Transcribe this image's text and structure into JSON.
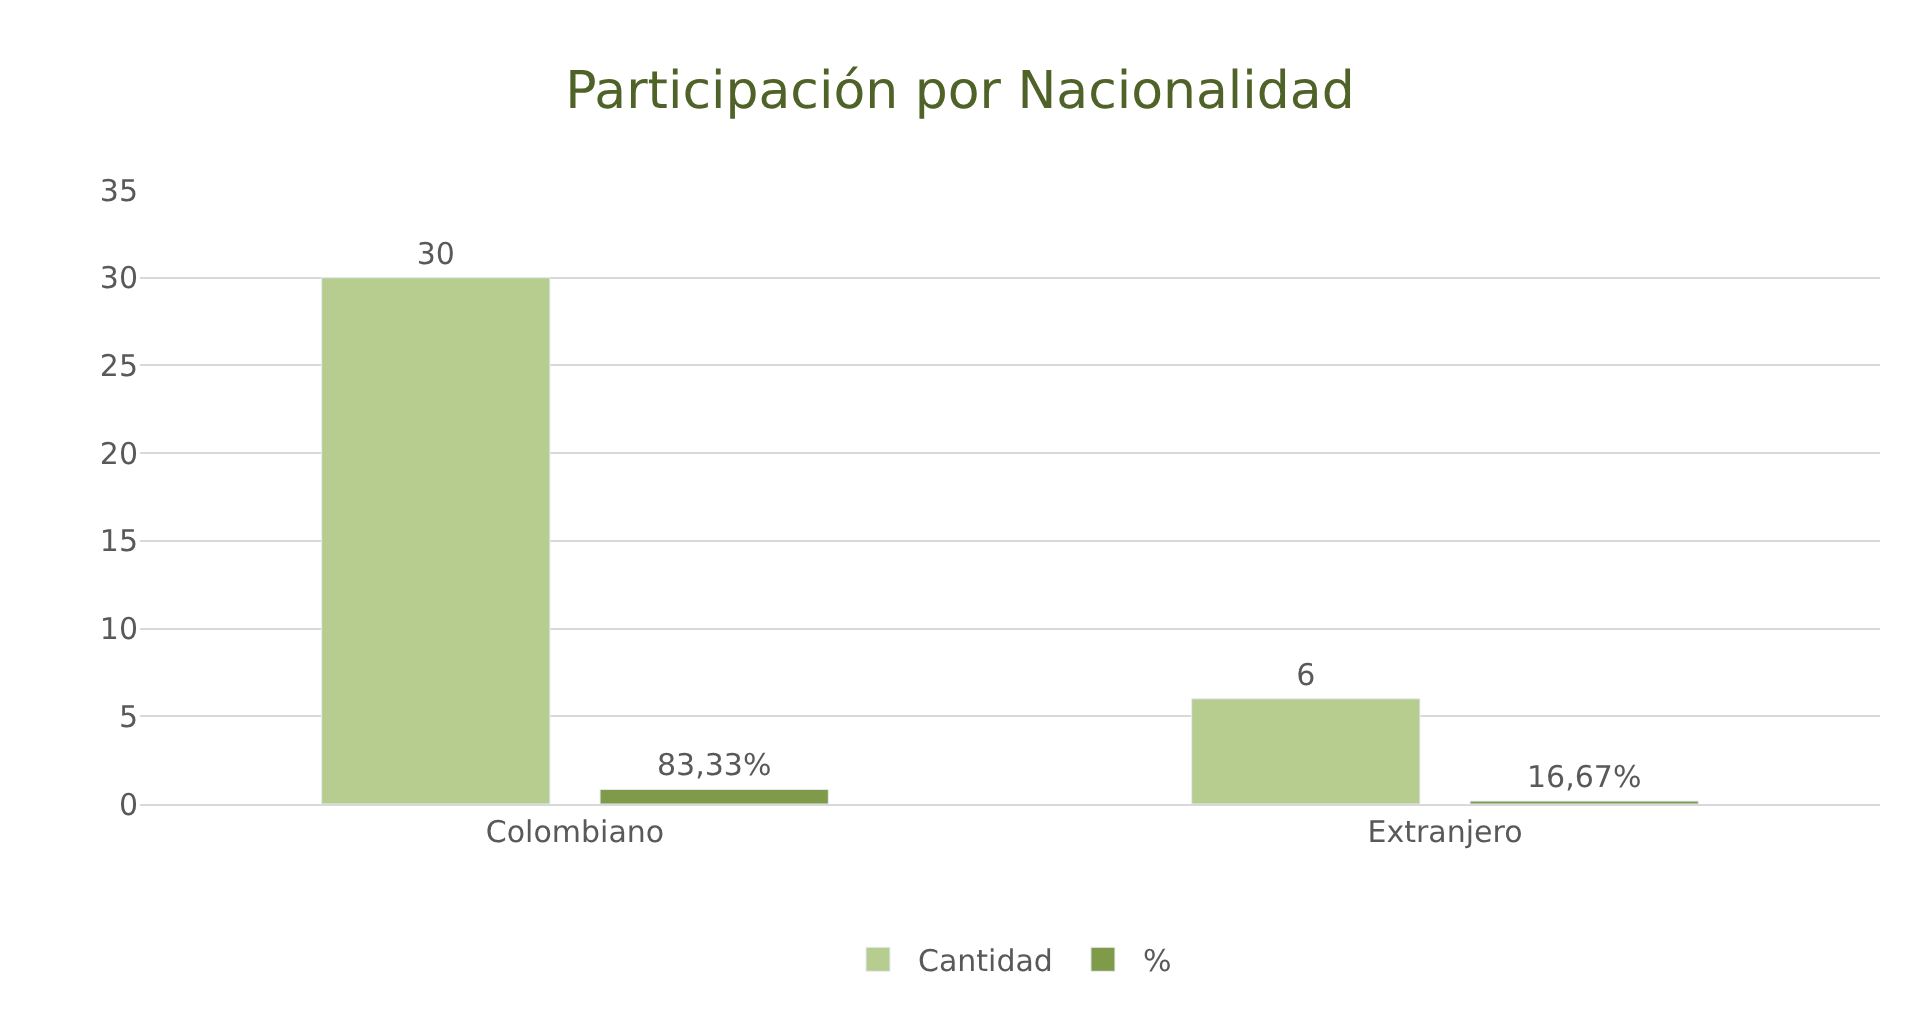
{
  "chart_data": {
    "type": "bar",
    "title": "Participación por Nacionalidad",
    "categories": [
      "Colombiano",
      "Extranjero"
    ],
    "series": [
      {
        "name": "Cantidad",
        "color": "#b7cd90",
        "values": [
          30,
          6
        ],
        "value_labels": [
          "30",
          "6"
        ]
      },
      {
        "name": "%",
        "color": "#7f9a48",
        "values": [
          0.8333,
          0.1667
        ],
        "value_labels": [
          "83,33%",
          "16,67%"
        ]
      }
    ],
    "ylim": [
      0,
      35
    ],
    "yticks": [
      0,
      5,
      10,
      15,
      20,
      25,
      30,
      35
    ],
    "grid": "y",
    "legend": "bottom"
  }
}
